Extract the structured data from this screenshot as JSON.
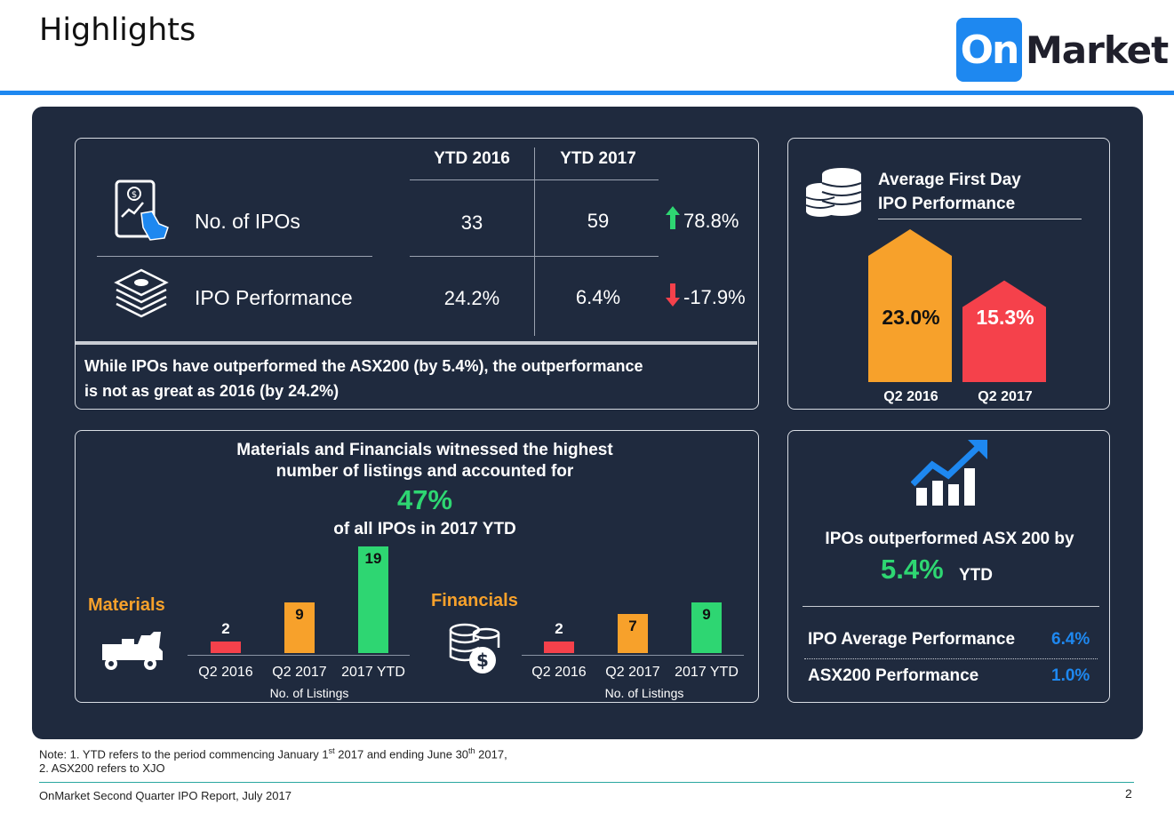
{
  "header": {
    "title": "Highlights",
    "logo_on": "On",
    "logo_market": "Market"
  },
  "table": {
    "col_2016": "YTD 2016",
    "col_2017": "YTD 2017",
    "rows": [
      {
        "label": "No. of IPOs",
        "v2016": "33",
        "v2017": "59",
        "change": "78.8%",
        "direction": "up"
      },
      {
        "label": "IPO Performance",
        "v2016": "24.2%",
        "v2017": "6.4%",
        "change": "-17.9%",
        "direction": "down"
      }
    ],
    "note_line1": "While IPOs have outperformed the ASX200 (by 5.4%), the outperformance",
    "note_line2": "is not as great as 2016 (by 24.2%)"
  },
  "first_day": {
    "title_line1": "Average First Day",
    "title_line2": "IPO Performance",
    "bars": [
      {
        "label": "Q2 2016",
        "value": "23.0%",
        "numeric": 23.0,
        "color": "#f7a12b"
      },
      {
        "label": "Q2 2017",
        "value": "15.3%",
        "numeric": 15.3,
        "color": "#f5414b"
      }
    ]
  },
  "sectors": {
    "headline_line1": "Materials and Financials witnessed the highest",
    "headline_line2": "number of listings and accounted for",
    "big_pct": "47%",
    "headline_line3": "of all IPOs in 2017 YTD",
    "axis_label": "No. of Listings"
  },
  "chart_data": [
    {
      "type": "bar",
      "title": "Materials",
      "xlabel": "No. of Listings",
      "categories": [
        "Q2 2016",
        "Q2 2017",
        "2017 YTD"
      ],
      "values": [
        2,
        9,
        19
      ],
      "colors": [
        "#f5414b",
        "#f7a12b",
        "#2ed672"
      ]
    },
    {
      "type": "bar",
      "title": "Financials",
      "xlabel": "No. of Listings",
      "categories": [
        "Q2 2016",
        "Q2 2017",
        "2017 YTD"
      ],
      "values": [
        2,
        7,
        9
      ],
      "colors": [
        "#f5414b",
        "#f7a12b",
        "#2ed672"
      ]
    }
  ],
  "outperf": {
    "line1": "IPOs outperformed ASX 200 by",
    "big": "5.4%",
    "suffix": "YTD",
    "rows": [
      {
        "label": "IPO Average Performance",
        "value": "6.4%"
      },
      {
        "label": "ASX200 Performance",
        "value": "1.0%"
      }
    ]
  },
  "footer": {
    "note1": "Note: 1. YTD refers to the period commencing January 1",
    "note1_sup1": "st",
    "note1_mid": " 2017 and ending June 30",
    "note1_sup2": "th",
    "note1_end": " 2017,",
    "note2": "2. ASX200 refers to XJO",
    "report": "OnMarket Second Quarter IPO Report, July 2017",
    "page": "2"
  },
  "colors": {
    "accent_blue": "#1e88f0",
    "panel": "#1f2a3e",
    "green": "#2ed672",
    "orange": "#f7a12b",
    "red": "#f5414b",
    "materials_label": "#f7a12b"
  }
}
